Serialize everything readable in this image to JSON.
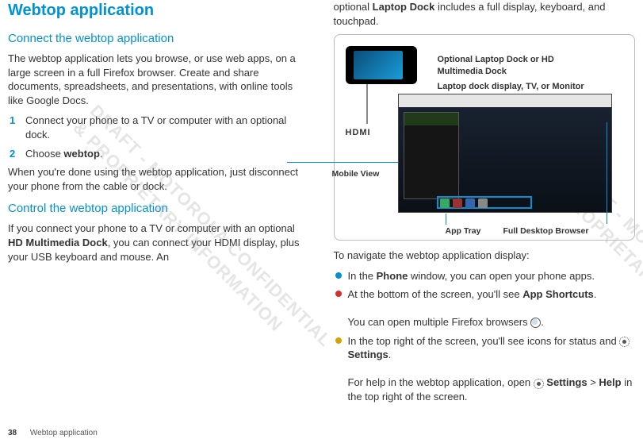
{
  "left": {
    "title": "Webtop application",
    "h2a": "Connect the webtop application",
    "intro": "The webtop application lets you browse, or use web apps, on a large screen in a full Firefox browser. Create and share documents, spreadsheets, and presentations, with online tools like Google Docs.",
    "step1": "Connect your phone to a TV or computer with an optional dock.",
    "step2_pre": "Choose ",
    "step2_bold": "webtop",
    "step2_post": ".",
    "after_steps": "When you're done using the webtop application, just disconnect your phone from the cable or dock.",
    "h2b": "Control the webtop application",
    "control_p": "If you connect your phone to a TV or computer with an optional HD Multimedia Dock, you can connect your HDMI display, plus your USB keyboard and mouse. An"
  },
  "right": {
    "cont": "optional Laptop Dock includes a full display, keyboard, and touchpad.",
    "fig": {
      "cap1": "Optional Laptop Dock or HD Multimedia Dock",
      "cap2": "Laptop dock display, TV, or Monitor",
      "hdmi": "HDMI",
      "mobile": "Mobile View",
      "apptray": "App Tray",
      "browser": "Full Desktop Browser"
    },
    "nav_intro": "To navigate the webtop application display:",
    "b1": "In the Phone window, you can open your phone apps.",
    "b2": "At the bottom of the screen, you'll see App Shortcuts.",
    "b2b": "You can open multiple Firefox browsers ",
    "b3a": "In the top right of the screen, you'll see icons for status and ",
    "b3b": " Settings.",
    "b3c": "For help in the webtop application, open ",
    "b3d": " Settings > Help in the top right of the screen."
  },
  "footer": {
    "page": "38",
    "section": "Webtop application"
  },
  "watermark": "DRAFT - MOTOROLA CONFIDENTIAL\n& PROPRIETARY INFORMATION"
}
